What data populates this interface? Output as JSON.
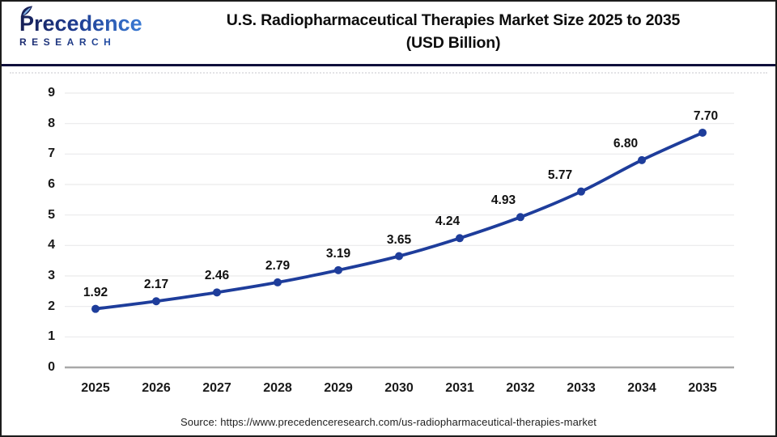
{
  "header": {
    "logo": {
      "name": "Precedence",
      "subname": "RESEARCH"
    },
    "title": "U.S. Radiopharmaceutical Therapies Market Size 2025 to 2035",
    "subtitle": "(USD Billion)"
  },
  "chart_data": {
    "type": "line",
    "title": "U.S. Radiopharmaceutical Therapies Market Size 2025 to 2035 (USD Billion)",
    "categories": [
      "2025",
      "2026",
      "2027",
      "2028",
      "2029",
      "2030",
      "2031",
      "2032",
      "2033",
      "2034",
      "2035"
    ],
    "series": [
      {
        "name": "U.S. Radiopharmaceutical Therapies Market Size (USD Billion)",
        "values": [
          1.92,
          2.17,
          2.46,
          2.79,
          3.19,
          3.65,
          4.24,
          4.93,
          5.77,
          6.8,
          7.7
        ]
      }
    ],
    "data_labels": [
      "1.92",
      "2.17",
      "2.46",
      "2.79",
      "3.19",
      "3.65",
      "4.24",
      "4.93",
      "5.77",
      "6.80",
      "7.70"
    ],
    "xlabel": "",
    "ylabel": "",
    "ylim": [
      0,
      9
    ],
    "ytick_interval": 1,
    "grid": true,
    "legend": false
  },
  "footer": {
    "source": "Source: https://www.precedenceresearch.com/us-radiopharmaceutical-therapies-market"
  },
  "colors": {
    "line": "#1e3d9b",
    "marker": "#1e3d9b",
    "grid": "#e9e9eb",
    "axis": "#a8a8a8",
    "header_rule": "#10103c",
    "logo_dark": "#171f55",
    "logo_light": "#3a7bd5",
    "text": "#111111"
  }
}
